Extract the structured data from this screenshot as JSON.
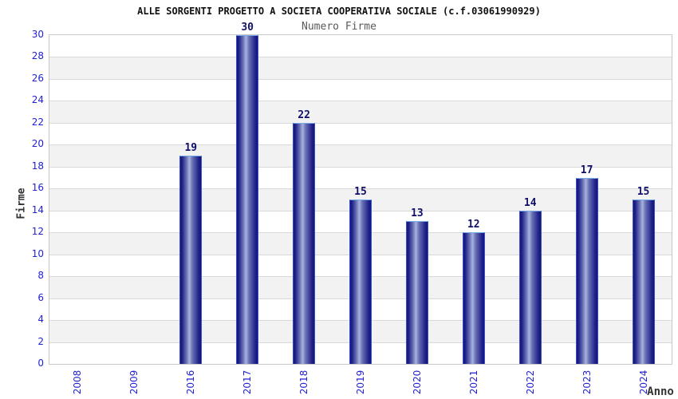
{
  "chart_data": {
    "type": "bar",
    "title": "ALLE SORGENTI PROGETTO A SOCIETA COOPERATIVA SOCIALE (c.f.03061990929)",
    "subtitle": "Numero Firme",
    "xlabel": "Anno",
    "ylabel": "Firme",
    "categories": [
      "2008",
      "2009",
      "2016",
      "2017",
      "2018",
      "2019",
      "2020",
      "2021",
      "2022",
      "2023",
      "2024"
    ],
    "values": [
      0,
      0,
      19,
      30,
      22,
      15,
      13,
      12,
      14,
      17,
      15
    ],
    "ylim": [
      0,
      30
    ],
    "ytick_step": 2,
    "grid": "horizontal gridlines with alternating shaded bands every 2 units",
    "legend": "none",
    "x_tick_rotation": -90,
    "colors": {
      "tick_label": "#2222d4",
      "value_label": "#10106a",
      "title": "#111111",
      "subtitle": "#5a5a5a",
      "axis_title": "#333333",
      "band_shaded": "#f2f2f2",
      "band_plain": "#ffffff",
      "gridline": "#d9d9d9",
      "bar_edge": "#151570",
      "bar_dark": "#23238c",
      "bar_mid": "#6973b4",
      "bar_highlight": "#a9b2e0",
      "bar_border_top": "#74abe6",
      "bar_border_side": "#3351d4"
    }
  }
}
